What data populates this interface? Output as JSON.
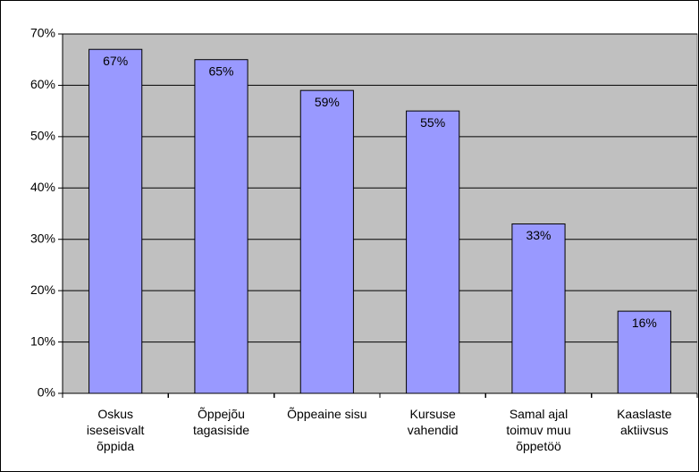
{
  "chart_data": {
    "type": "bar",
    "categories": [
      "Oskus\niseseisvalt\nõppida",
      "Õppejõu\ntagasiside",
      "Õppeaine sisu",
      "Kursuse\nvahendid",
      "Samal ajal\ntoimuv muu\nõppetöö",
      "Kaaslaste\naktiivsus"
    ],
    "values": [
      67,
      65,
      59,
      55,
      33,
      16
    ],
    "value_labels": [
      "67%",
      "65%",
      "59%",
      "55%",
      "33%",
      "16%"
    ],
    "color": "#9999ff",
    "ylim": [
      0,
      70
    ],
    "yticks": [
      {
        "value": 0,
        "label": "0%"
      },
      {
        "value": 10,
        "label": "10%"
      },
      {
        "value": 20,
        "label": "20%"
      },
      {
        "value": 30,
        "label": "30%"
      },
      {
        "value": 40,
        "label": "40%"
      },
      {
        "value": 50,
        "label": "50%"
      },
      {
        "value": 60,
        "label": "60%"
      },
      {
        "value": 70,
        "label": "70%"
      }
    ],
    "grid": true
  }
}
